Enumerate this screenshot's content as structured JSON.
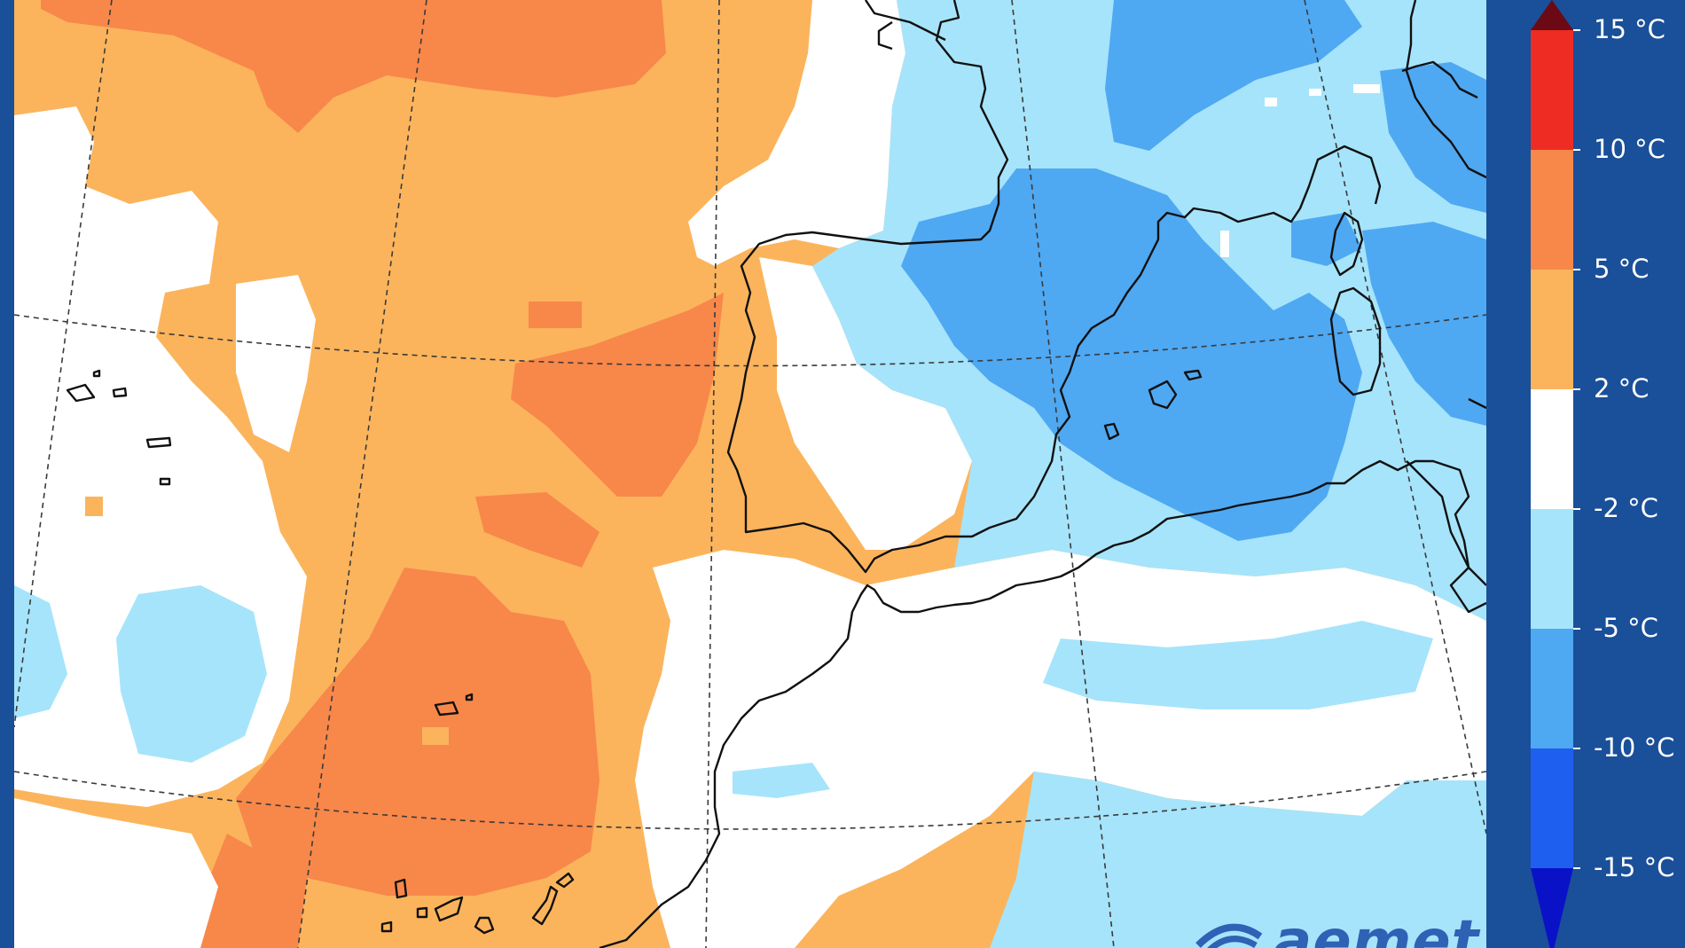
{
  "colors": {
    "frame": "#1a4f99",
    "coast": "#111111",
    "gridline": "#3a3a3a"
  },
  "legend": {
    "title": "",
    "bins": [
      {
        "label": "15 °C",
        "color": "#6b0a14"
      },
      {
        "label": "10 °C",
        "color": "#ee2c24"
      },
      {
        "label": "5 °C",
        "color": "#f8874a"
      },
      {
        "label": "2 °C",
        "color": "#fbb45c"
      },
      {
        "label": "-2 °C",
        "color": "#ffffff"
      },
      {
        "label": "-5 °C",
        "color": "#a6e4fb"
      },
      {
        "label": "-10 °C",
        "color": "#4fa8f2"
      },
      {
        "label": "-15 °C",
        "color": "#1f5ff0"
      },
      {
        "label": "",
        "color": "#0a12c8"
      }
    ],
    "labels": [
      "15 °C",
      "10 °C",
      "5 °C",
      "2 °C",
      "-2 °C",
      "-5 °C",
      "-10 °C",
      "-15 °C"
    ]
  },
  "logo": {
    "text": "aemet",
    "icon": "aemet-logo-icon"
  }
}
